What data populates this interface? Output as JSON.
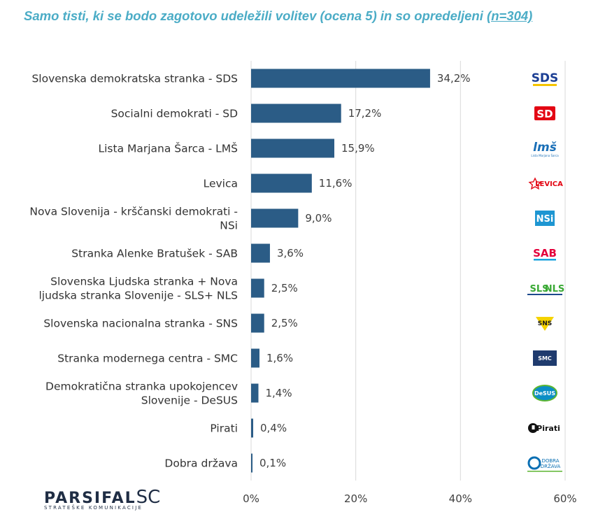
{
  "title": {
    "main": "Samo tisti, ki se bodo zagotovo udeležili volitev (ocena 5) in so opredeljeni ",
    "n": "(n=304)"
  },
  "colors": {
    "bar": "#2b5c86",
    "title": "#4bacc6",
    "text": "#333333",
    "grid": "#d9d9d9"
  },
  "chart_data": {
    "type": "bar",
    "orientation": "horizontal",
    "categories": [
      [
        "Slovenska demokratska stranka - SDS"
      ],
      [
        "Socialni demokrati - SD"
      ],
      [
        "Lista Marjana Šarca - LMŠ"
      ],
      [
        "Levica"
      ],
      [
        "Nova Slovenija - krščanski demokrati -",
        "NSi"
      ],
      [
        "Stranka Alenke Bratušek - SAB"
      ],
      [
        "Slovenska Ljudska stranka + Nova",
        "ljudska stranka Slovenije - SLS+ NLS"
      ],
      [
        "Slovenska nacionalna stranka - SNS"
      ],
      [
        "Stranka modernega centra - SMC"
      ],
      [
        "Demokratična stranka upokojencev",
        "Slovenije - DeSUS"
      ],
      [
        "Pirati"
      ],
      [
        "Dobra država"
      ]
    ],
    "values": [
      34.2,
      17.2,
      15.9,
      11.6,
      9.0,
      3.6,
      2.5,
      2.5,
      1.6,
      1.4,
      0.4,
      0.1
    ],
    "value_labels": [
      "34,2%",
      "17,2%",
      "15,9%",
      "11,6%",
      "9,0%",
      "3,6%",
      "2,5%",
      "2,5%",
      "1,6%",
      "1,4%",
      "0,4%",
      "0,1%"
    ],
    "xlim": [
      0,
      60
    ],
    "xticks": [
      0,
      20,
      40,
      60
    ],
    "xtick_labels": [
      "0%",
      "20%",
      "40%",
      "60%"
    ],
    "grid": true,
    "legend": "none"
  },
  "logos": [
    {
      "name": "sds-logo",
      "text": "SDS"
    },
    {
      "name": "sd-logo",
      "text": "SD"
    },
    {
      "name": "lms-logo",
      "text": "lmš",
      "small": "Lista Marjana Šarca"
    },
    {
      "name": "levica-logo",
      "text": "LEVICA"
    },
    {
      "name": "nsi-logo",
      "text": "NSi"
    },
    {
      "name": "sab-logo",
      "text": "SAB"
    },
    {
      "name": "sls-nls-logo",
      "text": "SLS",
      "text2": "NLS"
    },
    {
      "name": "sns-logo",
      "text": "SNS"
    },
    {
      "name": "smc-logo",
      "text": "SMC"
    },
    {
      "name": "desus-logo",
      "text": "DeSUS"
    },
    {
      "name": "pirati-logo",
      "text": "Pirati"
    },
    {
      "name": "dobra-drzava-logo",
      "text": "DOBRA",
      "text2": "DRŽAVA"
    }
  ],
  "brand": {
    "name": "PARSIFAL",
    "suffix": "SC",
    "tagline": "STRATEŠKE KOMUNIKACIJE"
  }
}
